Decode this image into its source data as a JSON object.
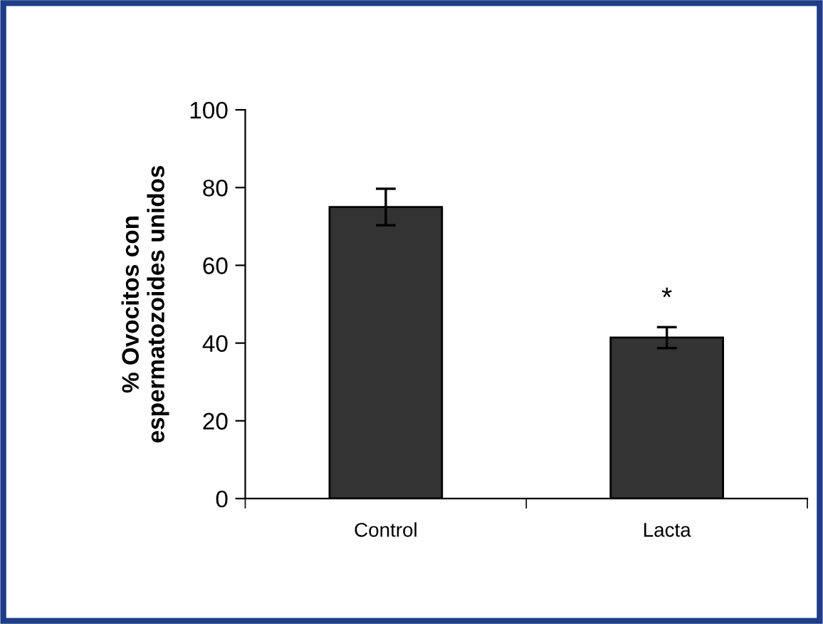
{
  "chart_data": {
    "type": "bar",
    "ylabel": "% Ovocitos con\nespermatozoides unidos",
    "categories": [
      "Control",
      "Lacta"
    ],
    "values": [
      75,
      41.4
    ],
    "errors": [
      4.7,
      2.7
    ],
    "color": "#333333",
    "ylim": [
      0,
      100
    ],
    "yticks": [
      0,
      20,
      40,
      60,
      80,
      100
    ],
    "grid": false,
    "legend": false,
    "annotations": [
      "*"
    ]
  }
}
